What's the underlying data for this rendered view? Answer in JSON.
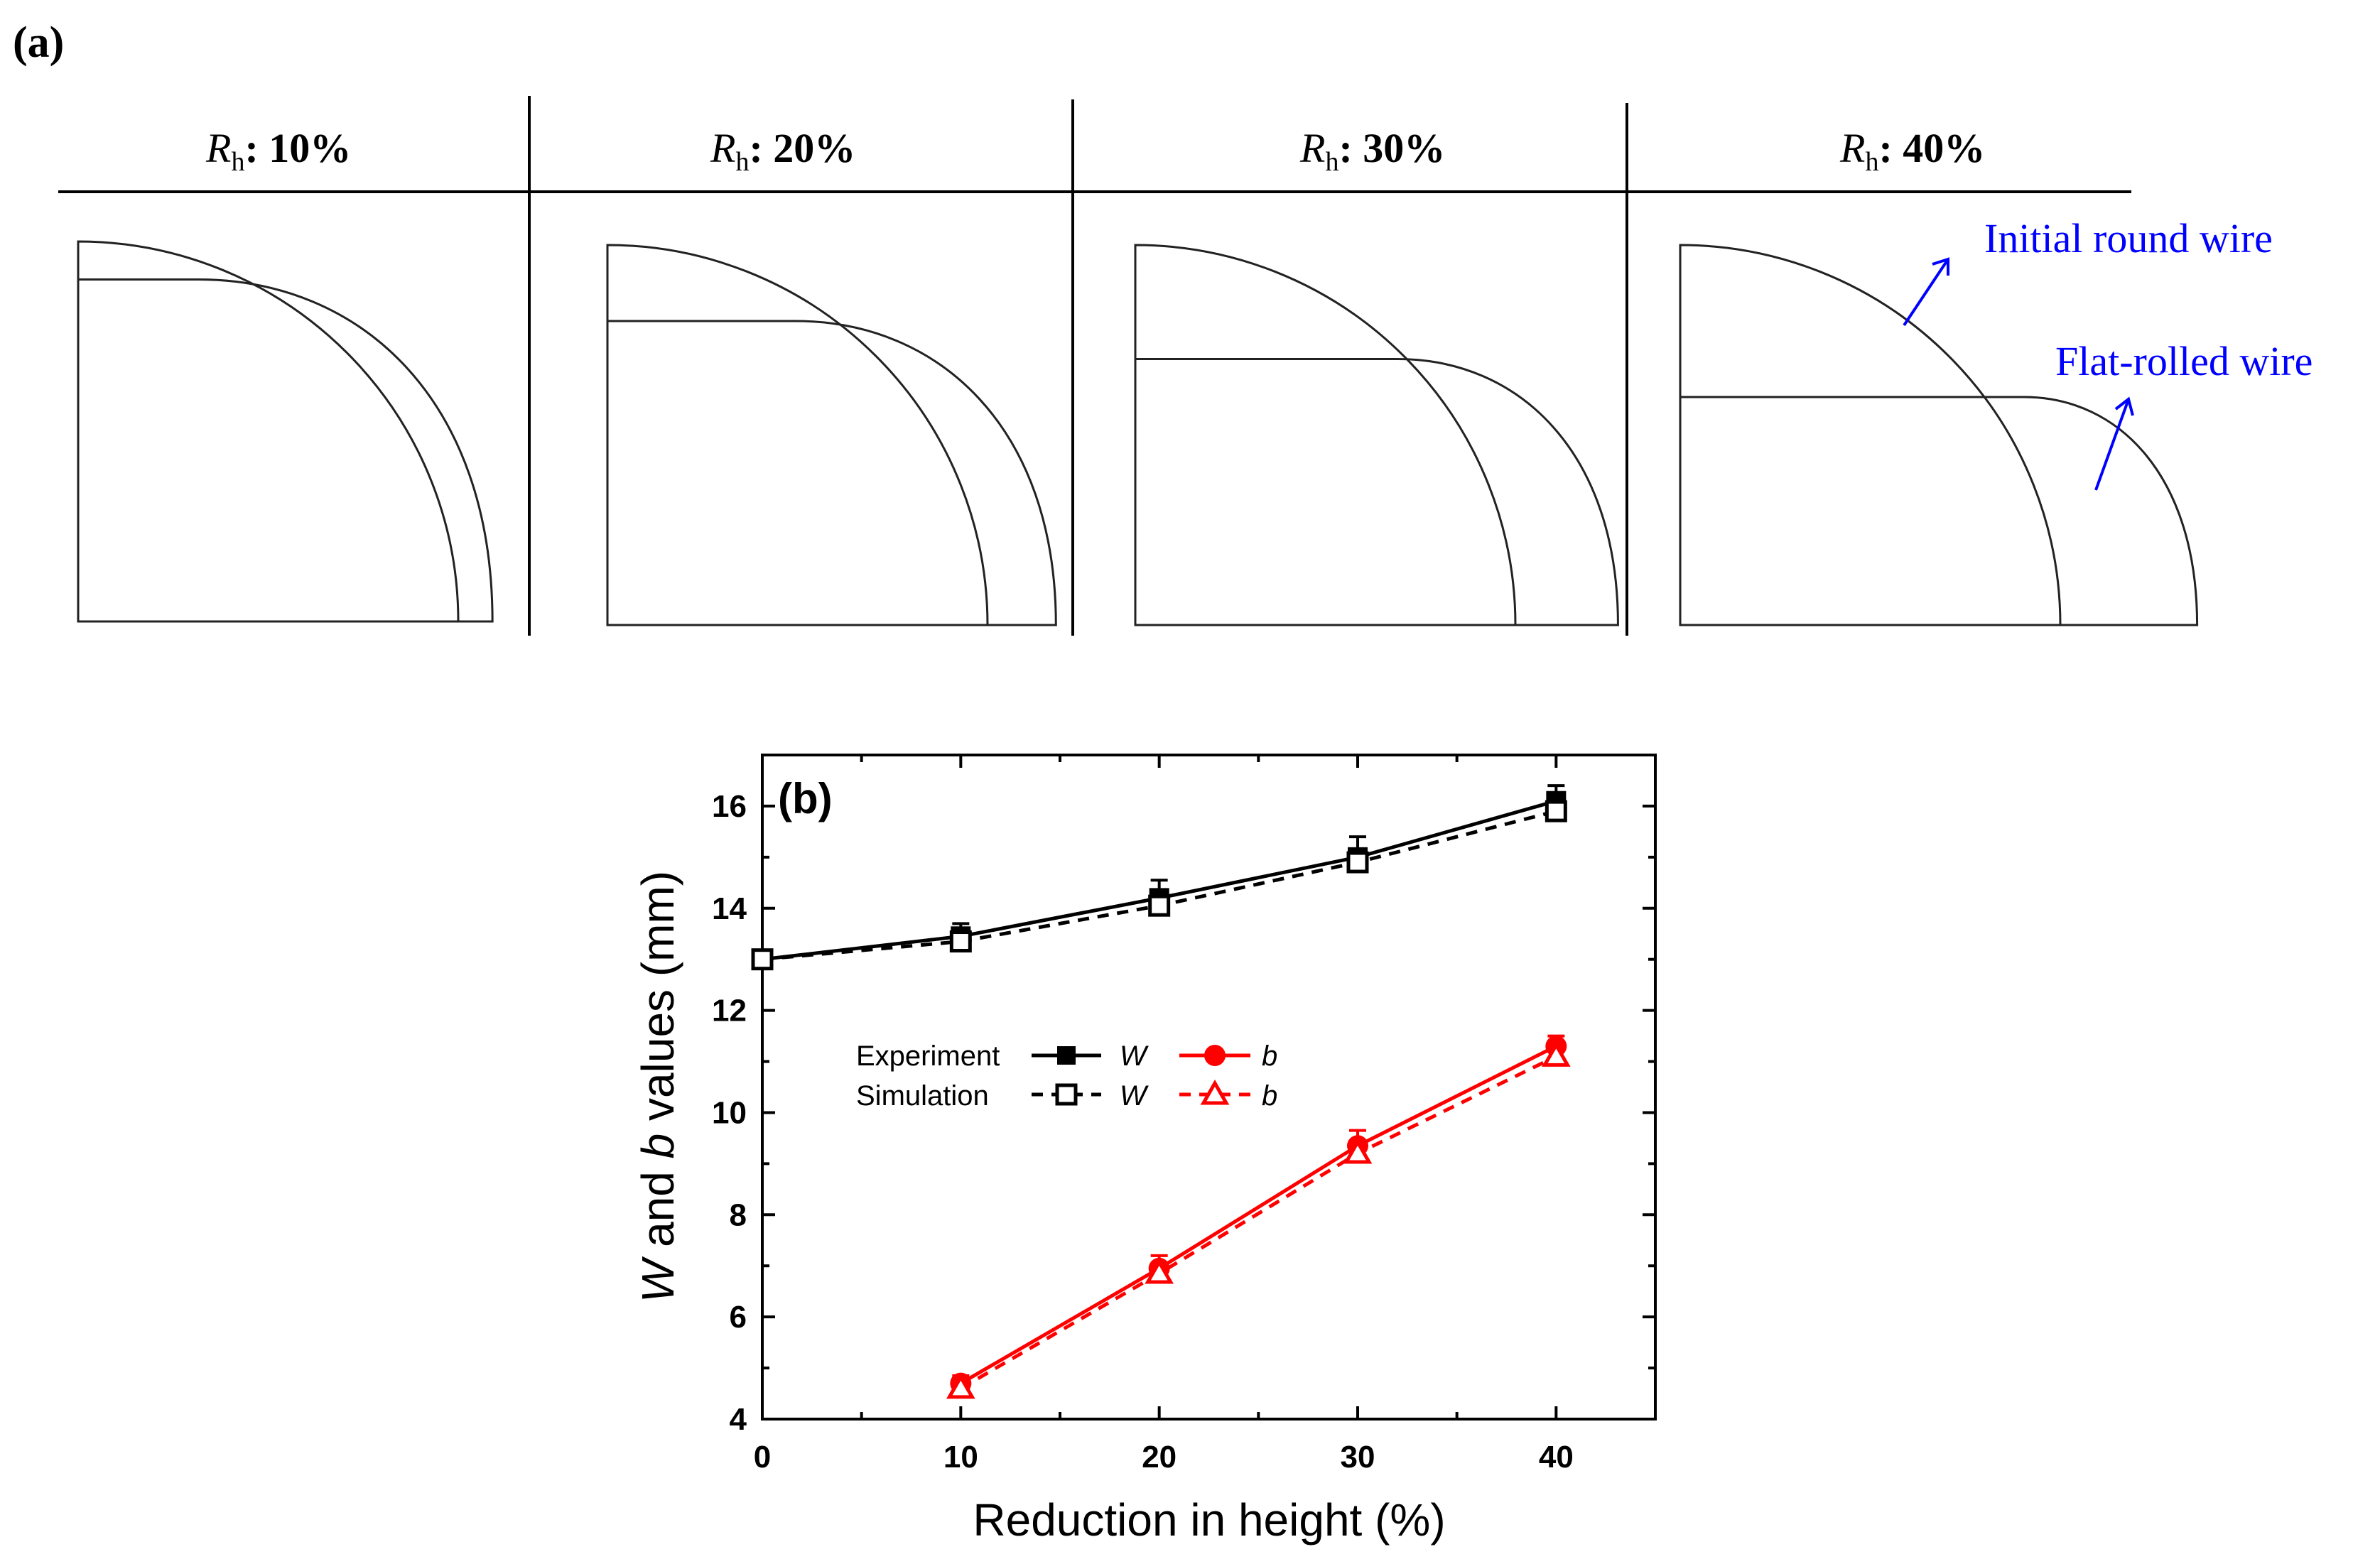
{
  "panel_a": {
    "label": "(a)",
    "columns": [
      {
        "symbol": "R",
        "subscript": "h",
        "value": ": 10%",
        "rh": 0.1
      },
      {
        "symbol": "R",
        "subscript": "h",
        "value": ": 20%",
        "rh": 0.2
      },
      {
        "symbol": "R",
        "subscript": "h",
        "value": ": 30%",
        "rh": 0.3
      },
      {
        "symbol": "R",
        "subscript": "h",
        "value": ": 40%",
        "rh": 0.4
      }
    ],
    "annotations": {
      "initial": "Initial round wire",
      "flat": "Flat-rolled wire"
    },
    "annotation_color": "#0000ff"
  },
  "chart_data": {
    "type": "line",
    "panel_label": "(b)",
    "xlabel": "Reduction in height (%)",
    "ylabel": {
      "pre": "W",
      "mid": " and ",
      "b": "b",
      "post": " values (mm)"
    },
    "xlim": [
      0,
      45
    ],
    "ylim": [
      4,
      17
    ],
    "xticks": [
      0,
      10,
      20,
      30,
      40
    ],
    "yticks": [
      4,
      6,
      8,
      10,
      12,
      14,
      16
    ],
    "grid": false,
    "legend_position": "center-left",
    "legend": {
      "row1": "Experiment",
      "row2": "Simulation",
      "w_label": "W",
      "b_label": "b"
    },
    "series": [
      {
        "name": "W",
        "group": "Experiment",
        "color": "#000000",
        "marker": "filled-square",
        "dash": false,
        "x": [
          0,
          10,
          20,
          30,
          40
        ],
        "y": [
          13.0,
          13.45,
          14.2,
          15.0,
          16.1
        ],
        "err": [
          0.0,
          0.25,
          0.35,
          0.4,
          0.3
        ]
      },
      {
        "name": "W",
        "group": "Simulation",
        "color": "#000000",
        "marker": "open-square",
        "dash": true,
        "x": [
          0,
          10,
          20,
          30,
          40
        ],
        "y": [
          13.0,
          13.35,
          14.05,
          14.9,
          15.9
        ],
        "err": [
          0,
          0,
          0,
          0,
          0
        ]
      },
      {
        "name": "b",
        "group": "Experiment",
        "color": "#ff0000",
        "marker": "filled-circle",
        "dash": false,
        "x": [
          10,
          20,
          30,
          40
        ],
        "y": [
          4.7,
          6.95,
          9.35,
          11.3
        ],
        "err": [
          0.15,
          0.25,
          0.3,
          0.2
        ]
      },
      {
        "name": "b",
        "group": "Simulation",
        "color": "#ff0000",
        "marker": "open-triangle",
        "dash": true,
        "x": [
          10,
          20,
          30,
          40
        ],
        "y": [
          4.6,
          6.85,
          9.2,
          11.1
        ],
        "err": [
          0,
          0,
          0,
          0
        ]
      }
    ]
  }
}
